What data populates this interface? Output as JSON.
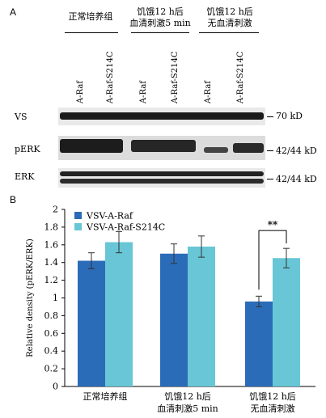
{
  "panel_a": {
    "label": "A",
    "groups": [
      {
        "line1": "正常培养组",
        "line2": ""
      },
      {
        "line1": "饥饿12 h后",
        "line2": "血清刺激5 min"
      },
      {
        "line1": "饥饿12 h后",
        "line2": "无血清刺激"
      }
    ],
    "lanes": [
      "A-Raf",
      "A-Raf-S214C",
      "A-Raf",
      "A-Raf-S214C",
      "A-Raf",
      "A-Raf-S214C"
    ],
    "rows": [
      {
        "label": "VS",
        "marker": "70 kD"
      },
      {
        "label": "pERK",
        "marker": "42/44  kD"
      },
      {
        "label": "ERK",
        "marker": "42/44  kD"
      }
    ]
  },
  "panel_b": {
    "label": "B",
    "chart_data": {
      "type": "bar",
      "categories": [
        "正常培养组",
        "饥饿12 h后\n血清刺激5 min",
        "饥饿12 h后\n无血清刺激"
      ],
      "category_lines": [
        [
          "正常培养组"
        ],
        [
          "饥饿12 h后",
          "血清刺激5 min"
        ],
        [
          "饥饿12 h后",
          "无血清刺激"
        ]
      ],
      "series": [
        {
          "name": "VSV-A-Raf",
          "values": [
            1.42,
            1.5,
            0.96
          ],
          "errors": [
            0.09,
            0.11,
            0.06
          ],
          "color": "#2b6cb8"
        },
        {
          "name": "VSV-A-Raf-S214C",
          "values": [
            1.63,
            1.58,
            1.45
          ],
          "errors": [
            0.12,
            0.12,
            0.11
          ],
          "color": "#68c6d6"
        }
      ],
      "ylabel": "Relative density (pERK/ERK)",
      "ylim": [
        0,
        2
      ],
      "yticks": [
        "0",
        "0.2",
        "0.4",
        "0.6",
        "0.8",
        "1",
        "1.2",
        "1.4",
        "1.6",
        "1.8",
        "2"
      ],
      "grid": false,
      "legend": "top-left",
      "significance": {
        "label": "**",
        "category_index": 2
      }
    }
  }
}
